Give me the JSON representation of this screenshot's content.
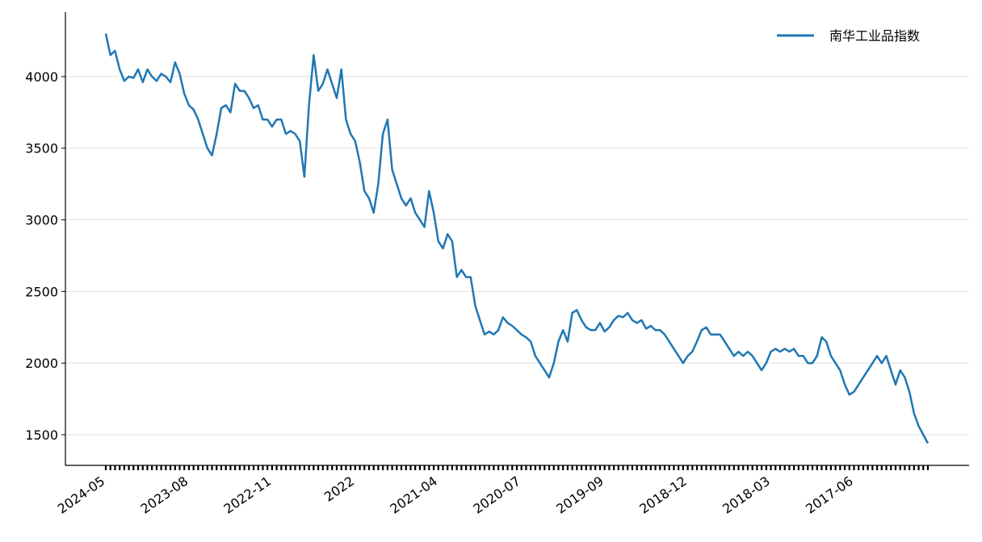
{
  "chart_data": {
    "type": "line",
    "categories": [
      "2024-05",
      null,
      null,
      null,
      null,
      null,
      null,
      null,
      null,
      null,
      null,
      null,
      null,
      null,
      null,
      null,
      null,
      null,
      "2023-08",
      null,
      null,
      null,
      null,
      null,
      null,
      null,
      null,
      null,
      null,
      null,
      null,
      null,
      null,
      null,
      null,
      null,
      "2022-11",
      null,
      null,
      null,
      null,
      null,
      null,
      null,
      null,
      null,
      null,
      null,
      null,
      null,
      null,
      null,
      null,
      null,
      "2022",
      null,
      null,
      null,
      null,
      null,
      null,
      null,
      null,
      null,
      null,
      null,
      null,
      null,
      null,
      null,
      null,
      null,
      "2021-04",
      null,
      null,
      null,
      null,
      null,
      null,
      null,
      null,
      null,
      null,
      null,
      null,
      null,
      null,
      null,
      null,
      null,
      "2020-07",
      null,
      null,
      null,
      null,
      null,
      null,
      null,
      null,
      null,
      null,
      null,
      null,
      null,
      null,
      null,
      null,
      null,
      "2019-09",
      null,
      null,
      null,
      null,
      null,
      null,
      null,
      null,
      null,
      null,
      null,
      null,
      null,
      null,
      null,
      null,
      null,
      "2018-12",
      null,
      null,
      null,
      null,
      null,
      null,
      null,
      null,
      null,
      null,
      null,
      null,
      null,
      null,
      null,
      null,
      null,
      "2018-03",
      null,
      null,
      null,
      null,
      null,
      null,
      null,
      null,
      null,
      null,
      null,
      null,
      null,
      null,
      null,
      null,
      null,
      "2017-06",
      null,
      null,
      null,
      null,
      null,
      null,
      null,
      null,
      null,
      null,
      null,
      null,
      null,
      null,
      null,
      null
    ],
    "series": [
      {
        "name": "南华工业品指数",
        "color": "#1f77b4",
        "values": [
          4300,
          4150,
          4180,
          4050,
          3970,
          4000,
          3990,
          4050,
          3960,
          4050,
          4000,
          3970,
          4020,
          4000,
          3960,
          4100,
          4020,
          3880,
          3800,
          3770,
          3700,
          3600,
          3500,
          3450,
          3600,
          3780,
          3800,
          3750,
          3950,
          3900,
          3900,
          3850,
          3780,
          3800,
          3700,
          3700,
          3650,
          3700,
          3700,
          3600,
          3620,
          3600,
          3550,
          3300,
          3800,
          4150,
          3900,
          3950,
          4050,
          3950,
          3850,
          4050,
          3700,
          3600,
          3550,
          3400,
          3200,
          3150,
          3050,
          3250,
          3600,
          3700,
          3350,
          3250,
          3150,
          3100,
          3150,
          3050,
          3000,
          2950,
          3200,
          3050,
          2850,
          2800,
          2900,
          2850,
          2600,
          2650,
          2600,
          2600,
          2400,
          2300,
          2200,
          2220,
          2200,
          2230,
          2320,
          2280,
          2260,
          2230,
          2200,
          2180,
          2150,
          2050,
          2000,
          1950,
          1900,
          2000,
          2150,
          2230,
          2150,
          2350,
          2370,
          2300,
          2250,
          2230,
          2230,
          2280,
          2220,
          2250,
          2300,
          2330,
          2320,
          2350,
          2300,
          2280,
          2300,
          2240,
          2260,
          2230,
          2230,
          2200,
          2150,
          2100,
          2050,
          2000,
          2050,
          2080,
          2150,
          2230,
          2250,
          2200,
          2200,
          2200,
          2150,
          2100,
          2050,
          2080,
          2050,
          2080,
          2050,
          2000,
          1950,
          2000,
          2080,
          2100,
          2080,
          2100,
          2080,
          2100,
          2050,
          2050,
          2000,
          2000,
          2050,
          2180,
          2150,
          2050,
          2000,
          1950,
          1850,
          1780,
          1800,
          1850,
          1900,
          1950,
          2000,
          2050,
          2000,
          2050,
          1950,
          1850,
          1950,
          1900,
          1800,
          1650,
          1560,
          1500,
          1440
        ]
      }
    ],
    "ylim": [
      1286,
      4450
    ],
    "yticks": [
      1500,
      2000,
      2500,
      3000,
      3500,
      4000
    ],
    "grid": true,
    "legend": "upper right"
  }
}
